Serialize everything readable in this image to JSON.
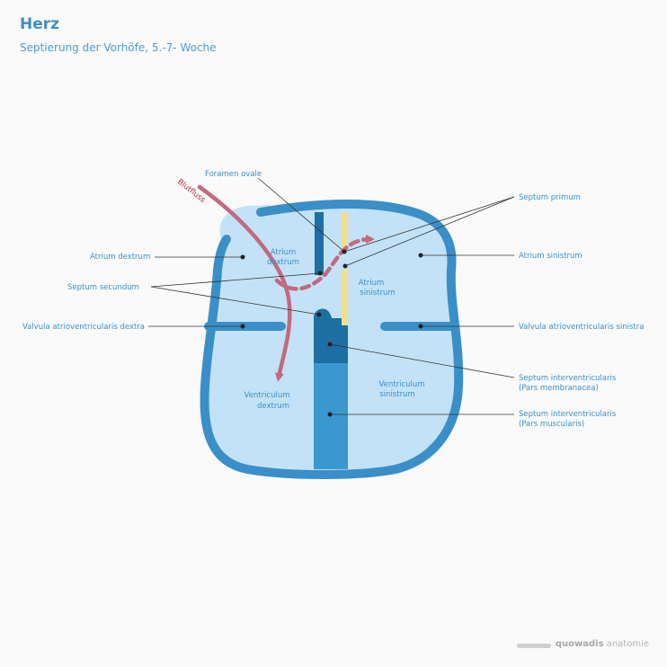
{
  "header": {
    "title": "Herz",
    "subtitle": "Septierung der Vorhöfe, 5.-7- Woche"
  },
  "labels": {
    "foramen_ovale": "Foramen ovale",
    "blutfluss": "Blutfluss",
    "septum_primum": "Septum primum",
    "atrium_dextrum": "Atrium dextrum",
    "atrium_sinistrum": "Atrium sinistrum",
    "septum_secundum": "Septum secundum",
    "valvula_dextra": "Valvula atrioventricularis dextra",
    "valvula_sinistra": "Valvula atrioventricularis sinistra",
    "septum_membranacea_1": "Septum interventricularis",
    "septum_membranacea_2": "(Pars membranacea)",
    "septum_muscularis_1": "Septum interventricularis",
    "septum_muscularis_2": "(Pars muscularis)"
  },
  "inner_labels": {
    "atrium_dextrum_1": "Atrium",
    "atrium_dextrum_2": "dextrum",
    "atrium_sinistrum_1": "Atrium",
    "atrium_sinistrum_2": "sinistrum",
    "ventriculum_dextrum_1": "Ventriculum",
    "ventriculum_dextrum_2": "dextrum",
    "ventriculum_sinistrum_1": "Ventriculum",
    "ventriculum_sinistrum_2": "sinistrum"
  },
  "brand": {
    "name": "quowadis",
    "suffix": " anatomie"
  },
  "colors": {
    "outline": "#3a8fc8",
    "fill": "#c4e2f7",
    "septum_dark": "#1d6fa4",
    "septum_muscular": "#3b97d0",
    "septum_primum": "#f3e08a",
    "flow": "#c26a7e",
    "text": "#3a8fc8",
    "flow_text": "#b2343d"
  }
}
